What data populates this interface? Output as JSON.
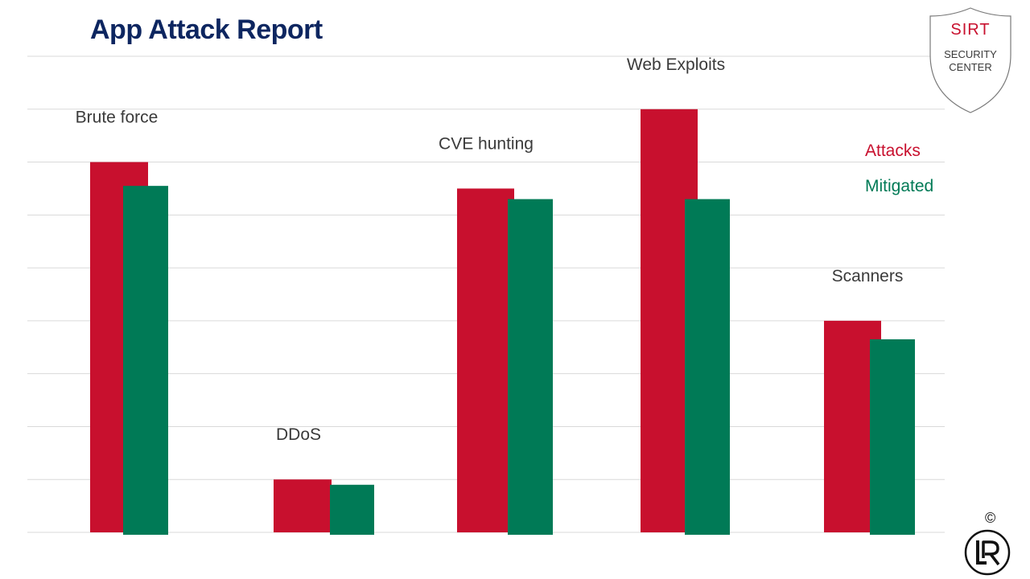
{
  "title": "App Attack Report",
  "badge": {
    "top": "SIRT",
    "line1": "SECURITY",
    "line2": "CENTER"
  },
  "copyright": "©",
  "legend": {
    "attacks": "Attacks",
    "mitigated": "Mitigated"
  },
  "colors": {
    "attacks": "#c8102e",
    "mitigated": "#007a56",
    "title": "#0d2660",
    "grid": "#d9d9d9"
  },
  "chart_data": {
    "type": "bar",
    "categories": [
      "Brute force",
      "DDoS",
      "CVE  hunting",
      "Web Exploits",
      "Scanners"
    ],
    "series": [
      {
        "name": "Attacks",
        "values": [
          70,
          10,
          65,
          80,
          40
        ]
      },
      {
        "name": "Mitigated",
        "values": [
          65.5,
          9,
          63,
          63,
          36.5
        ]
      }
    ],
    "ylim": [
      0,
      90
    ],
    "grid": true,
    "legend_position": "right"
  }
}
